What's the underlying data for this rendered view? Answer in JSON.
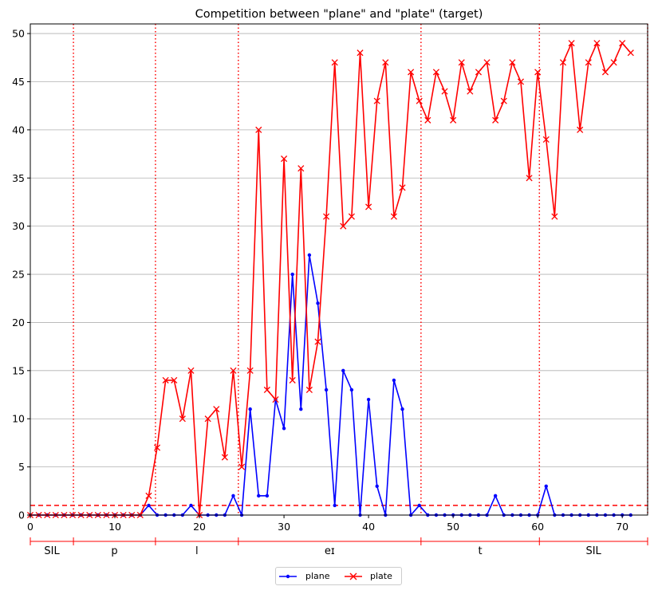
{
  "chart_data": {
    "type": "line",
    "title": "Competition between \"plane\" and \"plate\" (target)",
    "xlabel": "",
    "ylabel": "",
    "xlim": [
      0,
      73
    ],
    "ylim": [
      0,
      51
    ],
    "xticks": [
      0,
      10,
      20,
      30,
      40,
      50,
      60,
      70
    ],
    "yticks": [
      0,
      5,
      10,
      15,
      20,
      25,
      30,
      35,
      40,
      45,
      50
    ],
    "grid": "horizontal",
    "legend_placement": "bottom-center",
    "threshold": {
      "y": 1,
      "color": "#ff0000",
      "style": "dashed"
    },
    "segment_boundaries": [
      5.1,
      14.8,
      24.6,
      46.2,
      60.2,
      73
    ],
    "segments": [
      {
        "label": "SIL",
        "start": 0,
        "end": 5.1
      },
      {
        "label": "p",
        "start": 5.1,
        "end": 14.8
      },
      {
        "label": "l",
        "start": 14.8,
        "end": 24.6
      },
      {
        "label": "eɪ",
        "start": 24.6,
        "end": 46.2
      },
      {
        "label": "t",
        "start": 46.2,
        "end": 60.2
      },
      {
        "label": "SIL",
        "start": 60.2,
        "end": 73
      }
    ],
    "series": [
      {
        "name": "plane",
        "color": "#0000ff",
        "marker": "dot",
        "x": [
          0,
          1,
          2,
          3,
          4,
          5,
          6,
          7,
          8,
          9,
          10,
          11,
          12,
          13,
          14,
          15,
          16,
          17,
          18,
          19,
          20,
          21,
          22,
          23,
          24,
          25,
          26,
          27,
          28,
          29,
          30,
          31,
          32,
          33,
          34,
          35,
          36,
          37,
          38,
          39,
          40,
          41,
          42,
          43,
          44,
          45,
          46,
          47,
          48,
          49,
          50,
          51,
          52,
          53,
          54,
          55,
          56,
          57,
          58,
          59,
          60,
          61,
          62,
          63,
          64,
          65,
          66,
          67,
          68,
          69,
          70,
          71
        ],
        "values": [
          0,
          0,
          0,
          0,
          0,
          0,
          0,
          0,
          0,
          0,
          0,
          0,
          0,
          0,
          1,
          0,
          0,
          0,
          0,
          1,
          0,
          0,
          0,
          0,
          2,
          0,
          11,
          2,
          2,
          12,
          9,
          25,
          11,
          27,
          22,
          13,
          1,
          15,
          13,
          0,
          12,
          3,
          0,
          14,
          11,
          0,
          1,
          0,
          0,
          0,
          0,
          0,
          0,
          0,
          0,
          2,
          0,
          0,
          0,
          0,
          0,
          3,
          0,
          0,
          0,
          0,
          0,
          0,
          0,
          0,
          0,
          0
        ]
      },
      {
        "name": "plate",
        "color": "#ff0000",
        "marker": "x",
        "x": [
          0,
          1,
          2,
          3,
          4,
          5,
          6,
          7,
          8,
          9,
          10,
          11,
          12,
          13,
          14,
          15,
          16,
          17,
          18,
          19,
          20,
          21,
          22,
          23,
          24,
          25,
          26,
          27,
          28,
          29,
          30,
          31,
          32,
          33,
          34,
          35,
          36,
          37,
          38,
          39,
          40,
          41,
          42,
          43,
          44,
          45,
          46,
          47,
          48,
          49,
          50,
          51,
          52,
          53,
          54,
          55,
          56,
          57,
          58,
          59,
          60,
          61,
          62,
          63,
          64,
          65,
          66,
          67,
          68,
          69,
          70,
          71
        ],
        "values": [
          0,
          0,
          0,
          0,
          0,
          0,
          0,
          0,
          0,
          0,
          0,
          0,
          0,
          0,
          2,
          7,
          14,
          14,
          10,
          15,
          0,
          10,
          11,
          6,
          15,
          5,
          15,
          40,
          13,
          12,
          37,
          14,
          36,
          13,
          18,
          31,
          47,
          30,
          31,
          48,
          32,
          43,
          47,
          31,
          34,
          46,
          43,
          41,
          46,
          44,
          41,
          47,
          44,
          46,
          47,
          41,
          43,
          47,
          45,
          35,
          46,
          39,
          31,
          47,
          49,
          40,
          47,
          49,
          46,
          47,
          49,
          48
        ]
      }
    ]
  }
}
